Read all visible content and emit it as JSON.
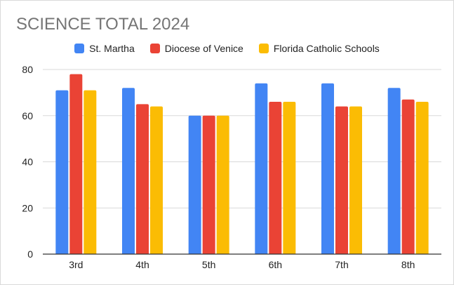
{
  "chart_data": {
    "type": "bar",
    "title": "SCIENCE TOTAL 2024",
    "xlabel": "",
    "ylabel": "",
    "categories": [
      "3rd",
      "4th",
      "5th",
      "6th",
      "7th",
      "8th"
    ],
    "series": [
      {
        "name": "St. Martha",
        "color": "#4285f4",
        "values": [
          71,
          72,
          60,
          74,
          74,
          72
        ]
      },
      {
        "name": "Diocese of Venice",
        "color": "#ea4335",
        "values": [
          78,
          65,
          60,
          66,
          64,
          67
        ]
      },
      {
        "name": "Florida Catholic Schools",
        "color": "#fbbc04",
        "values": [
          71,
          64,
          60,
          66,
          64,
          66
        ]
      }
    ],
    "yticks": [
      0,
      20,
      40,
      60,
      80
    ],
    "ylim": [
      0,
      80
    ],
    "grid": true,
    "legend_position": "top"
  }
}
